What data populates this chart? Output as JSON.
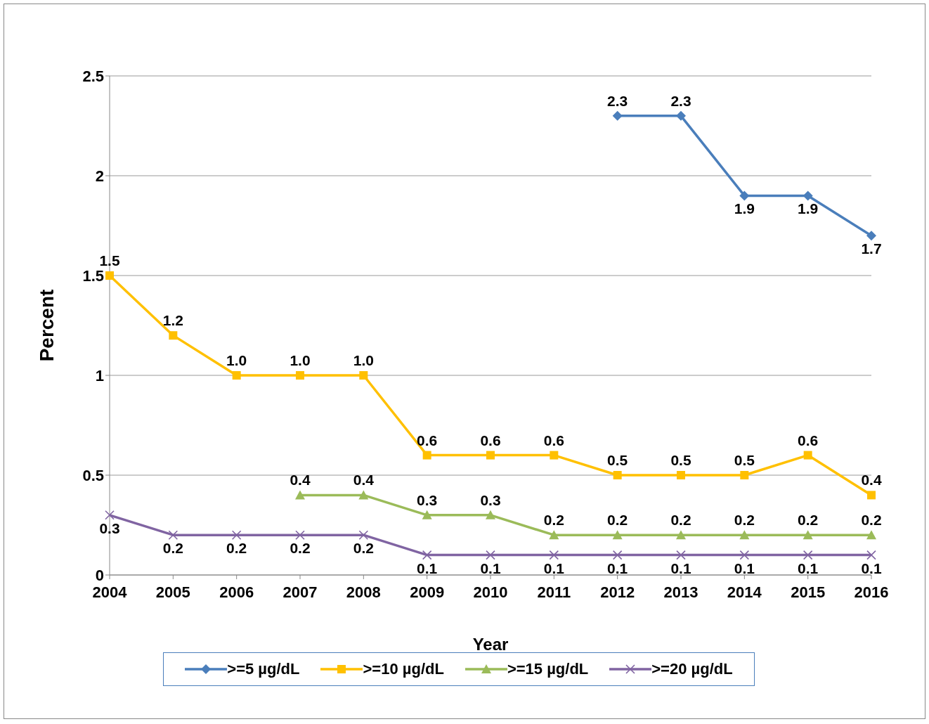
{
  "chart_data": {
    "type": "line",
    "xlabel": "Year",
    "ylabel": "Percent",
    "categories": [
      "2004",
      "2005",
      "2006",
      "2007",
      "2008",
      "2009",
      "2010",
      "2011",
      "2012",
      "2013",
      "2014",
      "2015",
      "2016"
    ],
    "ylim": [
      0,
      2.5
    ],
    "yticks": [
      0,
      0.5,
      1,
      1.5,
      2,
      2.5
    ],
    "grid": "y",
    "legend": "bottom",
    "series": [
      {
        "name": ">=5 µg/dL",
        "color": "#4a7ebb",
        "marker": "diamond",
        "values": [
          null,
          null,
          null,
          null,
          null,
          null,
          null,
          null,
          2.3,
          2.3,
          1.9,
          1.9,
          1.7
        ],
        "value_labels": [
          null,
          null,
          null,
          null,
          null,
          null,
          null,
          null,
          "2.3",
          "2.3",
          "1.9",
          "1.9",
          "1.7"
        ]
      },
      {
        "name": ">=10 µg/dL",
        "color": "#ffc000",
        "marker": "square",
        "values": [
          1.5,
          1.2,
          1.0,
          1.0,
          1.0,
          0.6,
          0.6,
          0.6,
          0.5,
          0.5,
          0.5,
          0.6,
          0.4
        ],
        "value_labels": [
          "1.5",
          "1.2",
          "1.0",
          "1.0",
          "1.0",
          "0.6",
          "0.6",
          "0.6",
          "0.5",
          "0.5",
          "0.5",
          "0.6",
          "0.4"
        ]
      },
      {
        "name": ">=15 µg/dL",
        "color": "#9bbb59",
        "marker": "triangle",
        "values": [
          null,
          null,
          null,
          0.4,
          0.4,
          0.3,
          0.3,
          0.2,
          0.2,
          0.2,
          0.2,
          0.2,
          0.2
        ],
        "value_labels": [
          null,
          null,
          null,
          "0.4",
          "0.4",
          "0.3",
          "0.3",
          "0.2",
          "0.2",
          "0.2",
          "0.2",
          "0.2",
          "0.2"
        ]
      },
      {
        "name": ">=20 µg/dL",
        "color": "#8064a2",
        "marker": "cross",
        "values": [
          0.3,
          0.2,
          0.2,
          0.2,
          0.2,
          0.1,
          0.1,
          0.1,
          0.1,
          0.1,
          0.1,
          0.1,
          0.1
        ],
        "value_labels": [
          "0.3",
          "0.2",
          "0.2",
          "0.2",
          "0.2",
          "0.1",
          "0.1",
          "0.1",
          "0.1",
          "0.1",
          "0.1",
          "0.1",
          "0.1"
        ]
      }
    ]
  }
}
